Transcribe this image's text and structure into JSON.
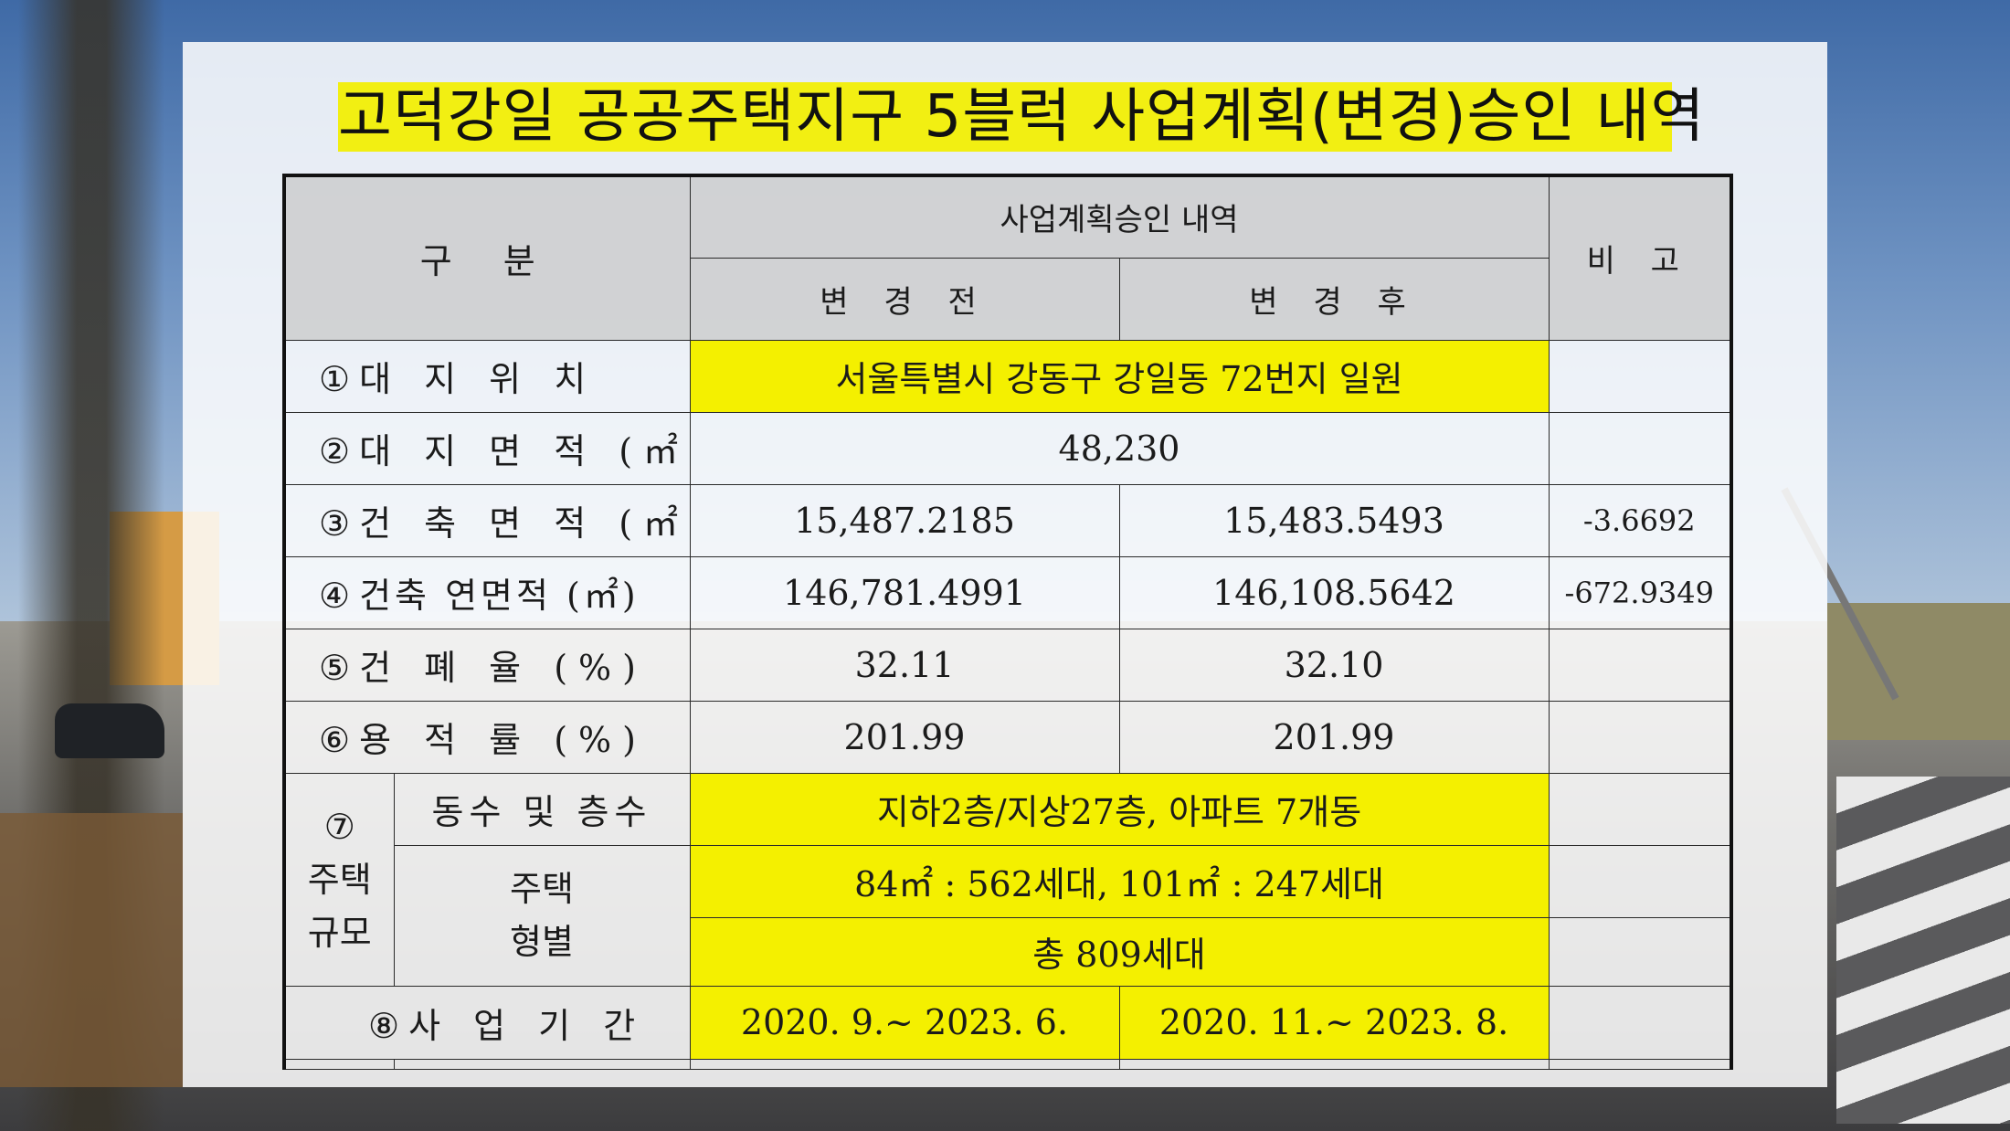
{
  "title": "고덕강일 공공주택지구 5블럭 사업계획(변경)승인 내역",
  "header": {
    "category": "구 분",
    "approval": "사업계획승인 내역",
    "remarks": "비 고",
    "before": "변 경 전",
    "after": "변 경 후"
  },
  "rows": {
    "location": {
      "no": "①",
      "label": "대 지 위 치",
      "value": "서울특별시 강동구 강일동 72번지 일원",
      "remark": ""
    },
    "site_area": {
      "no": "②",
      "label": "대 지 면 적 (㎡)",
      "value": "48,230",
      "remark": ""
    },
    "building_area": {
      "no": "③",
      "label": "건 축 면 적 (㎡)",
      "before": "15,487.2185",
      "after": "15,483.5493",
      "remark": "-3.6692"
    },
    "gross_area": {
      "no": "④",
      "label": "건축 연면적 (㎡)",
      "before": "146,781.4991",
      "after": "146,108.5642",
      "remark": "-672.9349"
    },
    "coverage": {
      "no": "⑤",
      "label": "건 폐 율 (%)",
      "before": "32.11",
      "after": "32.10",
      "remark": ""
    },
    "far": {
      "no": "⑥",
      "label": "용 적 률 (%)",
      "before": "201.99",
      "after": "201.99",
      "remark": ""
    },
    "housing": {
      "no": "⑦",
      "label_line1": "주택",
      "label_line2": "규모",
      "floors_label": "동수 및 층수",
      "floors_value": "지하2층/지상27층, 아파트 7개동",
      "types_label_line1": "주택",
      "types_label_line2": "형별",
      "types_value": "84㎡ : 562세대, 101㎡ : 247세대",
      "total_value": "총 809세대"
    },
    "period": {
      "no": "⑧",
      "label": "사 업 기 간",
      "before": "2020. 9.~ 2023. 6.",
      "after": "2020. 11.~ 2023. 8.",
      "remark": ""
    }
  },
  "colors": {
    "highlight": "#f4f000",
    "header_gray": "#c8c8c8",
    "title_bg": "#f2ef12"
  }
}
